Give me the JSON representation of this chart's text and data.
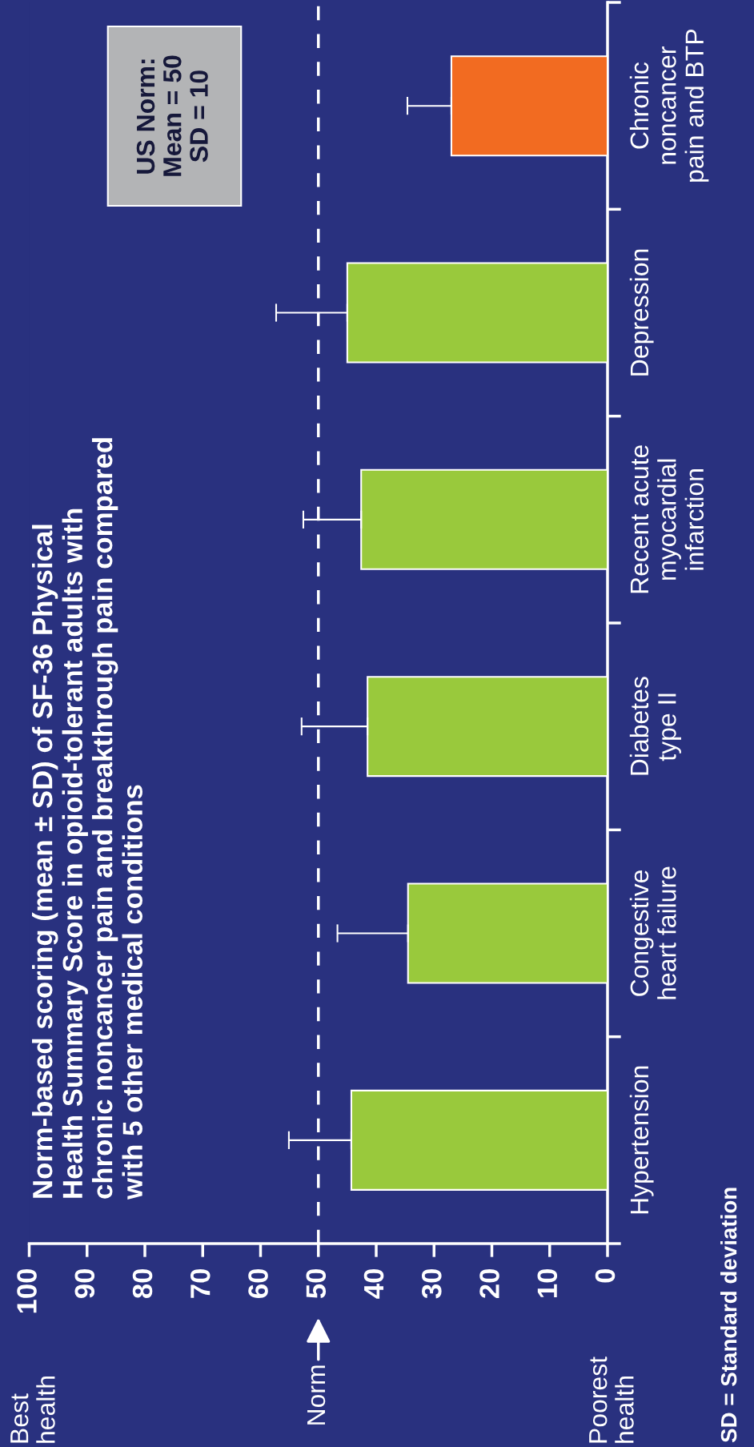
{
  "chart_data": {
    "type": "bar",
    "orientation": "horizontal",
    "title": "Norm-based scoring (mean ± SD) of SF-36 Physical\nHealth Summary Score in opioid-tolerant adults with\nchronic noncancer pain and breakthrough pain compared\nwith 5 other medical conditions",
    "categories": [
      "Chronic\nnoncancer\npain and BTP",
      "Depression",
      "Recent acute\nmyocardial\ninfarction",
      "Diabetes\ntype II",
      "Congestive\nheart failure",
      "Hypertension"
    ],
    "values": [
      27,
      45,
      42.6,
      41.5,
      34.5,
      44.3
    ],
    "colors": [
      "#f26b21",
      "#99c93c",
      "#99c93c",
      "#99c93c",
      "#99c93c",
      "#99c93c"
    ],
    "errors": [
      [
        27,
        34.6
      ],
      [
        45,
        57.3
      ],
      [
        42.6,
        52.6
      ],
      [
        41.5,
        52.9
      ],
      [
        34.5,
        46.7
      ],
      [
        44.3,
        55.1
      ]
    ],
    "xlim": [
      100,
      0
    ],
    "xticks": [
      100,
      90,
      80,
      70,
      60,
      50,
      40,
      30,
      20,
      10,
      0
    ],
    "ref_lines": [
      {
        "axis": "x",
        "value": 50,
        "label": "Norm",
        "color": "#ffffff",
        "line_style": "dashed"
      }
    ],
    "annotations": [
      "US Norm:\nMean = 50\nSD = 10",
      "Best\nhealth",
      "Poorest\nhealth",
      "SD = Standard deviation"
    ],
    "grid": false,
    "legend": false
  }
}
